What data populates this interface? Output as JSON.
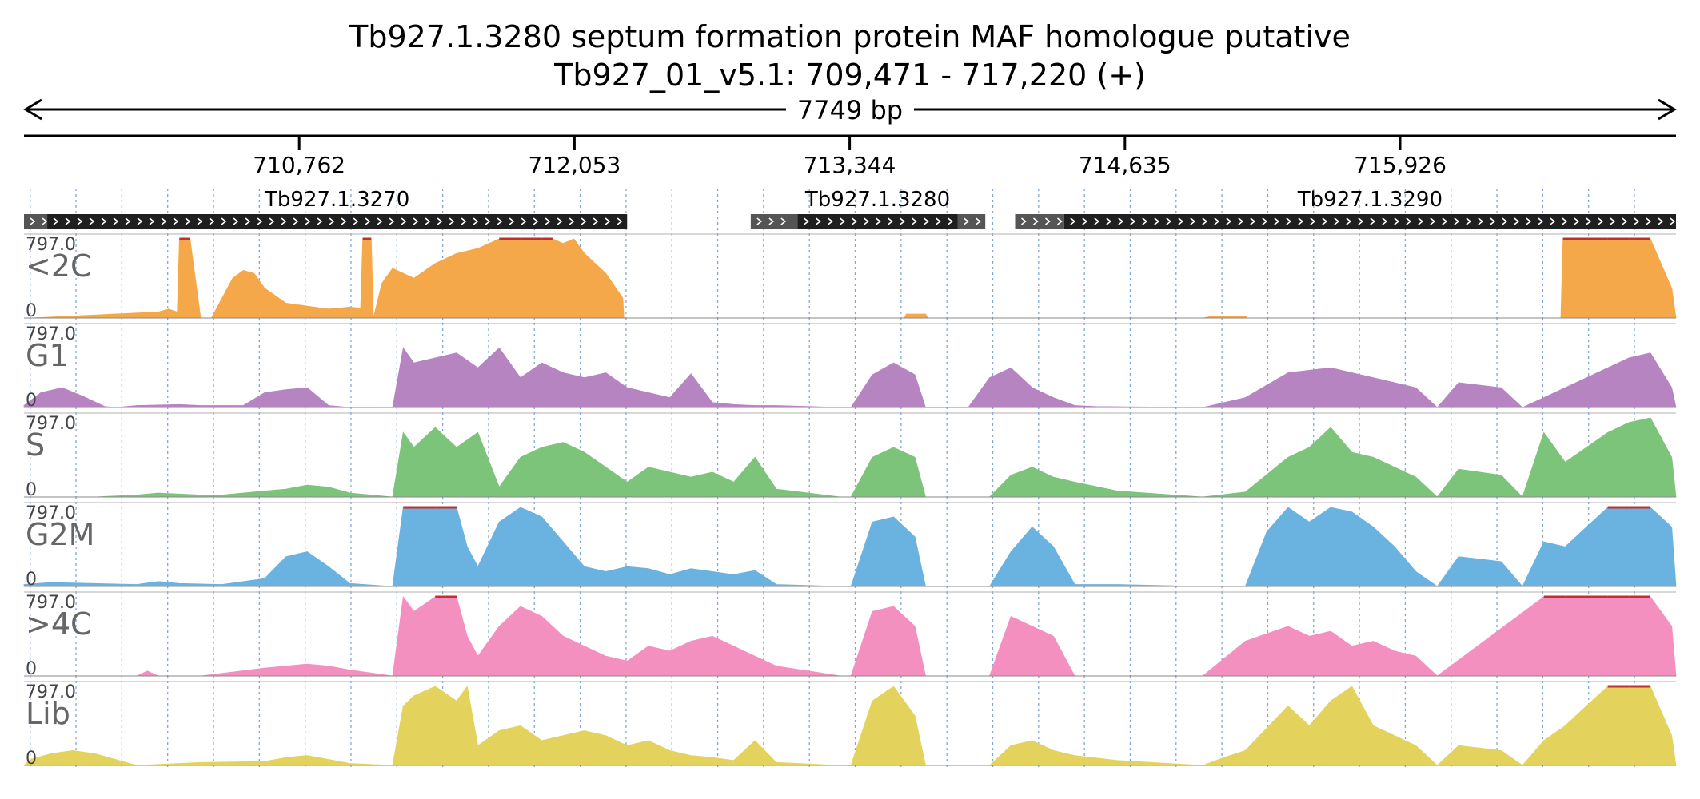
{
  "title_line1": "Tb927.1.3280  septum formation protein MAF homologue  putative",
  "title_line2": "Tb927_01_v5.1: 709,471 - 717,220 (+)",
  "span_label": "7749 bp",
  "colors": {
    "track_max_marker": "#c03030",
    "gene_fill": "#1f1f1f",
    "utr_fill": "#555555",
    "gridline": "#7fa8d8"
  },
  "chart_data": {
    "type": "area",
    "region": {
      "chrom": "Tb927_01_v5.1",
      "start": 709471,
      "end": 717220,
      "strand": "+",
      "length_bp": 7749
    },
    "x_ticks": [
      "710,762",
      "712,053",
      "713,344",
      "714,635",
      "715,926"
    ],
    "x_tick_values": [
      710762,
      712053,
      713344,
      714635,
      715926
    ],
    "genes": [
      {
        "name": "Tb927.1.3270",
        "cds": [
          709580,
          712300
        ],
        "utr": [
          709471,
          709580
        ]
      },
      {
        "name": "Tb927.1.3280",
        "cds": [
          713100,
          713850
        ],
        "utr5": [
          712880,
          713100
        ],
        "utr3": [
          713850,
          713980
        ]
      },
      {
        "name": "Tb927.1.3290",
        "cds": [
          714350,
          717220
        ],
        "utr": [
          714120,
          714350
        ]
      }
    ],
    "series": [
      {
        "name": "<2C",
        "color": "#f5a84a",
        "ymax": "797.0",
        "ymin": "0",
        "ylim": [
          0,
          797
        ],
        "x": [
          709471,
          709500,
          710100,
          710150,
          710190,
          710200,
          710250,
          710300,
          710350,
          710400,
          710450,
          710500,
          710550,
          710600,
          710700,
          710800,
          710900,
          711000,
          711050,
          711060,
          711100,
          711110,
          711150,
          711200,
          711300,
          711400,
          711500,
          711600,
          711700,
          711800,
          711900,
          711950,
          712000,
          712050,
          712100,
          712200,
          712280,
          712285,
          712350,
          713500,
          713600,
          713610,
          713700,
          713710,
          714000,
          715000,
          715050,
          715200,
          715210,
          716600,
          716680,
          716690,
          716800,
          716900,
          717000,
          717100,
          717200,
          717220
        ],
        "values": [
          0,
          0,
          60,
          90,
          60,
          797,
          797,
          0,
          0,
          200,
          400,
          480,
          450,
          300,
          150,
          120,
          90,
          110,
          100,
          797,
          797,
          0,
          350,
          500,
          400,
          550,
          650,
          700,
          797,
          797,
          797,
          797,
          750,
          797,
          650,
          450,
          200,
          0,
          0,
          0,
          0,
          40,
          40,
          0,
          0,
          0,
          20,
          20,
          0,
          0,
          0,
          797,
          797,
          797,
          797,
          797,
          300,
          0
        ]
      },
      {
        "name": "G1",
        "color": "#b784c2",
        "ymax": "797.0",
        "ymin": "0",
        "ylim": [
          0,
          797
        ],
        "x": [
          709471,
          709550,
          709650,
          709750,
          709850,
          709900,
          710000,
          710200,
          710300,
          710500,
          710600,
          710700,
          710800,
          710900,
          711000,
          711200,
          711250,
          711300,
          711400,
          711500,
          711600,
          711700,
          711800,
          711900,
          712000,
          712100,
          712200,
          712300,
          712400,
          712500,
          712600,
          712700,
          712800,
          712900,
          713000,
          713300,
          713350,
          713450,
          713550,
          713650,
          713700,
          713900,
          714000,
          714100,
          714200,
          714300,
          714400,
          714500,
          715000,
          715200,
          715400,
          715600,
          715800,
          716000,
          716100,
          716200,
          716400,
          716500,
          716600,
          716800,
          716900,
          717000,
          717100,
          717200,
          717220
        ],
        "values": [
          20,
          150,
          200,
          110,
          10,
          0,
          20,
          30,
          20,
          20,
          150,
          180,
          200,
          20,
          0,
          0,
          600,
          450,
          500,
          550,
          400,
          600,
          300,
          450,
          350,
          300,
          350,
          200,
          150,
          100,
          340,
          50,
          30,
          20,
          20,
          0,
          0,
          330,
          450,
          330,
          0,
          0,
          300,
          400,
          200,
          100,
          20,
          10,
          0,
          100,
          350,
          400,
          300,
          200,
          0,
          250,
          200,
          0,
          100,
          300,
          400,
          500,
          550,
          200,
          0
        ]
      },
      {
        "name": "S",
        "color": "#7cc47a",
        "ymax": "797.0",
        "ymin": "0",
        "ylim": [
          0,
          797
        ],
        "x": [
          709471,
          709800,
          710000,
          710100,
          710200,
          710300,
          710400,
          710600,
          710700,
          710800,
          710900,
          711000,
          711200,
          711250,
          711300,
          711400,
          711500,
          711600,
          711700,
          711800,
          711900,
          712000,
          712100,
          712200,
          712300,
          712400,
          712500,
          712600,
          712700,
          712800,
          712900,
          713000,
          713300,
          713350,
          713450,
          713550,
          713650,
          713700,
          714000,
          714100,
          714200,
          714300,
          714400,
          714600,
          715000,
          715200,
          715400,
          715500,
          715600,
          715700,
          715800,
          715900,
          716000,
          716100,
          716200,
          716400,
          716500,
          716600,
          716700,
          716800,
          716900,
          717000,
          717100,
          717200,
          717220
        ],
        "values": [
          0,
          0,
          20,
          40,
          30,
          20,
          20,
          60,
          80,
          120,
          100,
          40,
          0,
          650,
          500,
          700,
          500,
          650,
          100,
          400,
          500,
          550,
          450,
          300,
          150,
          300,
          250,
          200,
          250,
          150,
          400,
          80,
          0,
          0,
          400,
          500,
          400,
          0,
          0,
          220,
          300,
          200,
          150,
          60,
          0,
          50,
          400,
          500,
          700,
          450,
          400,
          300,
          200,
          0,
          280,
          220,
          0,
          650,
          350,
          500,
          650,
          750,
          797,
          400,
          0
        ]
      },
      {
        "name": "G2M",
        "color": "#6ab2e0",
        "ymax": "797.0",
        "ymin": "0",
        "ylim": [
          0,
          797
        ],
        "x": [
          709471,
          709600,
          709800,
          710000,
          710100,
          710200,
          710400,
          710600,
          710700,
          710800,
          710900,
          711000,
          711200,
          711250,
          711300,
          711400,
          711500,
          711550,
          711600,
          711700,
          711800,
          711900,
          712000,
          712100,
          712200,
          712300,
          712400,
          712500,
          712600,
          712700,
          712800,
          712900,
          713000,
          713300,
          713350,
          713450,
          713550,
          713650,
          713700,
          714000,
          714100,
          714200,
          714300,
          714400,
          714600,
          715000,
          715200,
          715300,
          715400,
          715500,
          715600,
          715700,
          715800,
          715900,
          716000,
          716100,
          716200,
          716400,
          716500,
          716600,
          716700,
          716800,
          716900,
          717000,
          717100,
          717200,
          717220
        ],
        "values": [
          20,
          40,
          30,
          20,
          50,
          30,
          20,
          80,
          300,
          350,
          200,
          30,
          0,
          797,
          797,
          797,
          797,
          400,
          200,
          650,
          797,
          700,
          450,
          200,
          150,
          200,
          180,
          120,
          180,
          150,
          120,
          160,
          20,
          0,
          0,
          650,
          700,
          500,
          0,
          0,
          350,
          600,
          400,
          20,
          20,
          0,
          0,
          550,
          797,
          650,
          797,
          750,
          600,
          400,
          150,
          0,
          300,
          250,
          0,
          450,
          400,
          600,
          797,
          797,
          797,
          600,
          0
        ]
      },
      {
        "name": ">4C",
        "color": "#f390c0",
        "ymax": "797.0",
        "ymin": "0",
        "ylim": [
          0,
          797
        ],
        "x": [
          709471,
          709800,
          710000,
          710050,
          710100,
          710300,
          710600,
          710700,
          710800,
          710900,
          711000,
          711200,
          711250,
          711300,
          711400,
          711500,
          711550,
          711600,
          711700,
          711800,
          711900,
          712000,
          712100,
          712200,
          712300,
          712400,
          712500,
          712600,
          712700,
          712800,
          712900,
          713000,
          713300,
          713350,
          713450,
          713550,
          713650,
          713700,
          714000,
          714100,
          714200,
          714300,
          714400,
          715000,
          715200,
          715400,
          715500,
          715600,
          715700,
          715800,
          715900,
          716000,
          716100,
          716600,
          716700,
          716800,
          716900,
          717000,
          717100,
          717200,
          717220
        ],
        "values": [
          0,
          0,
          0,
          50,
          0,
          0,
          80,
          100,
          120,
          100,
          60,
          0,
          797,
          650,
          797,
          797,
          400,
          200,
          500,
          700,
          600,
          400,
          300,
          200,
          150,
          300,
          250,
          350,
          400,
          300,
          200,
          100,
          0,
          0,
          650,
          700,
          500,
          0,
          0,
          600,
          500,
          400,
          0,
          0,
          350,
          500,
          400,
          450,
          300,
          350,
          250,
          200,
          0,
          797,
          797,
          797,
          797,
          797,
          797,
          500,
          0
        ]
      },
      {
        "name": "Lib",
        "color": "#e3d35c",
        "ymax": "797.0",
        "ymin": "0",
        "ylim": [
          0,
          797
        ],
        "x": [
          709471,
          709500,
          709600,
          709700,
          709800,
          709900,
          710000,
          710200,
          710300,
          710600,
          710700,
          710800,
          710900,
          711000,
          711200,
          711250,
          711300,
          711400,
          711500,
          711550,
          711600,
          711700,
          711800,
          711900,
          712000,
          712100,
          712200,
          712300,
          712400,
          712500,
          712600,
          712700,
          712800,
          712900,
          713000,
          713300,
          713350,
          713450,
          713550,
          713650,
          713700,
          714000,
          714100,
          714200,
          714300,
          714400,
          714600,
          715000,
          715100,
          715200,
          715400,
          715500,
          715600,
          715700,
          715800,
          715900,
          716000,
          716100,
          716200,
          716400,
          716500,
          716600,
          716700,
          716800,
          716900,
          717000,
          717100,
          717200,
          717220
        ],
        "values": [
          0,
          60,
          120,
          150,
          120,
          60,
          0,
          20,
          30,
          40,
          80,
          100,
          60,
          20,
          0,
          600,
          700,
          797,
          650,
          797,
          200,
          350,
          400,
          250,
          300,
          350,
          300,
          200,
          250,
          150,
          100,
          80,
          50,
          250,
          30,
          0,
          0,
          650,
          797,
          500,
          0,
          0,
          200,
          250,
          150,
          100,
          50,
          0,
          80,
          150,
          600,
          400,
          650,
          797,
          400,
          300,
          200,
          0,
          200,
          150,
          0,
          250,
          400,
          600,
          797,
          797,
          797,
          300,
          0
        ]
      }
    ]
  }
}
